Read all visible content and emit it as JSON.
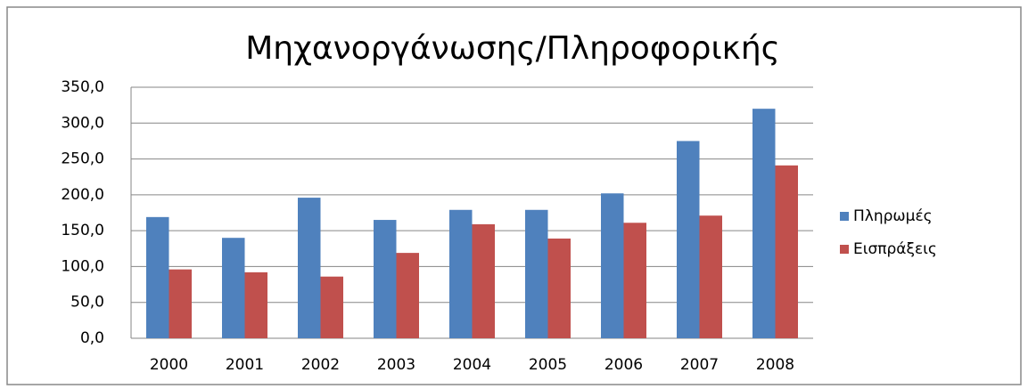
{
  "chart_data": {
    "type": "bar",
    "title": "Μηχανοργάνωσης/Πληροφορικής",
    "categories": [
      "2000",
      "2001",
      "2002",
      "2003",
      "2004",
      "2005",
      "2006",
      "2007",
      "2008"
    ],
    "series": [
      {
        "name": "Πληρωμές",
        "color": "#4f81bd",
        "values": [
          169,
          140,
          196,
          165,
          179,
          179,
          202,
          275,
          320
        ]
      },
      {
        "name": "Εισπράξεις",
        "color": "#c0504d",
        "values": [
          96,
          92,
          86,
          119,
          159,
          139,
          161,
          171,
          241
        ]
      }
    ],
    "ylim": [
      0,
      350
    ],
    "yticks": [
      {
        "value": 0,
        "label": "0,0"
      },
      {
        "value": 50,
        "label": "50,0"
      },
      {
        "value": 100,
        "label": "100,0"
      },
      {
        "value": 150,
        "label": "150,0"
      },
      {
        "value": 200,
        "label": "200,0"
      },
      {
        "value": 250,
        "label": "250,0"
      },
      {
        "value": 300,
        "label": "300,0"
      },
      {
        "value": 350,
        "label": "350,0"
      }
    ],
    "grid": true,
    "legend": "right"
  }
}
